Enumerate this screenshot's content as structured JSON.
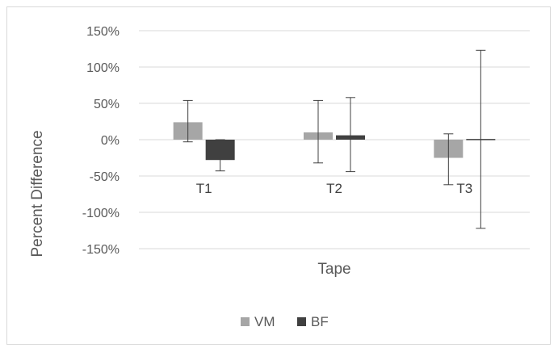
{
  "chart_data": {
    "type": "bar",
    "categories": [
      "T1",
      "T2",
      "T3"
    ],
    "series": [
      {
        "name": "VM",
        "color": "#a6a6a6",
        "values": [
          24,
          10,
          -25
        ],
        "err_low": [
          -3,
          -32,
          -62
        ],
        "err_high": [
          54,
          54,
          8
        ]
      },
      {
        "name": "BF",
        "color": "#404040",
        "values": [
          -28,
          6,
          1
        ],
        "err_low": [
          -43,
          -44,
          -122
        ],
        "err_high": [
          0,
          58,
          123
        ]
      }
    ],
    "xlabel": "Tape",
    "ylabel": "Percent Difference",
    "ylim": [
      -150,
      150
    ],
    "yticks": [
      150,
      100,
      50,
      0,
      -50,
      -100,
      -150
    ],
    "ytick_labels": [
      "150%",
      "100%",
      "50%",
      "0%",
      "-50%",
      "-100%",
      "-150%"
    ],
    "grid": true,
    "legend_position": "bottom"
  }
}
